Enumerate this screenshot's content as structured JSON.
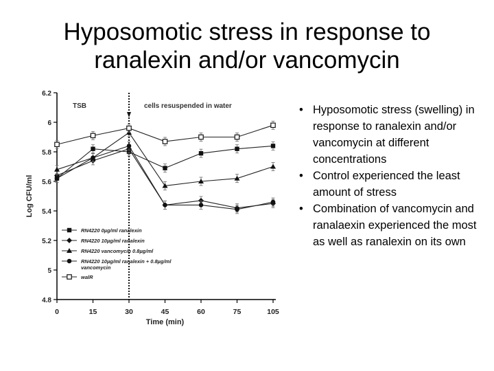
{
  "title": {
    "line1": "Hyposomotic stress in response to",
    "line2": "ranalexin and/or vancomycin"
  },
  "bullets": [
    "Hyposomotic stress (swelling) in response to ranalexin and/or vancomycin at different concentrations",
    "Control experienced the least amount of stress",
    "Combination of vancomycin and ranalaexin experienced the most as well as ranalexin on its own"
  ],
  "chart_data": {
    "type": "line",
    "title": "",
    "xlabel": "Time (min)",
    "ylabel": "Log CFU/ml",
    "x": [
      0,
      15,
      30,
      45,
      60,
      75,
      105
    ],
    "xticks": [
      "0",
      "15",
      "30",
      "45",
      "60",
      "75",
      "105"
    ],
    "yticks": [
      "4.8",
      "5",
      "5.2",
      "5.4",
      "5.6",
      "5.8",
      "6",
      "6.2"
    ],
    "ylim": [
      4.8,
      6.2
    ],
    "grid": false,
    "legend_position": "bottom-left",
    "annotations": [
      "TSB",
      "cells resuspended in water"
    ],
    "divider_x": 30,
    "series": [
      {
        "name": "RN4220 0µg/ml ranalexin",
        "marker": "square-filled",
        "values": [
          5.62,
          5.82,
          5.8,
          5.69,
          5.79,
          5.82,
          5.84
        ]
      },
      {
        "name": "RN4220 10µg/ml ranalexin",
        "marker": "diamond-filled",
        "values": [
          5.64,
          5.74,
          5.82,
          5.44,
          5.47,
          5.42,
          5.45
        ]
      },
      {
        "name": "RN4220 vancomycin 0.8µg/ml",
        "marker": "triangle-filled",
        "values": [
          5.68,
          5.76,
          5.93,
          5.57,
          5.6,
          5.62,
          5.7
        ]
      },
      {
        "name": "RN4220 10µg/ml ranalexin + 0.8µg/ml vancomycin",
        "marker": "circle-filled",
        "values": [
          5.62,
          5.76,
          5.84,
          5.44,
          5.44,
          5.41,
          5.46
        ]
      },
      {
        "name": "walR",
        "marker": "square-open",
        "values": [
          5.85,
          5.91,
          5.96,
          5.87,
          5.9,
          5.9,
          5.98
        ]
      }
    ]
  }
}
